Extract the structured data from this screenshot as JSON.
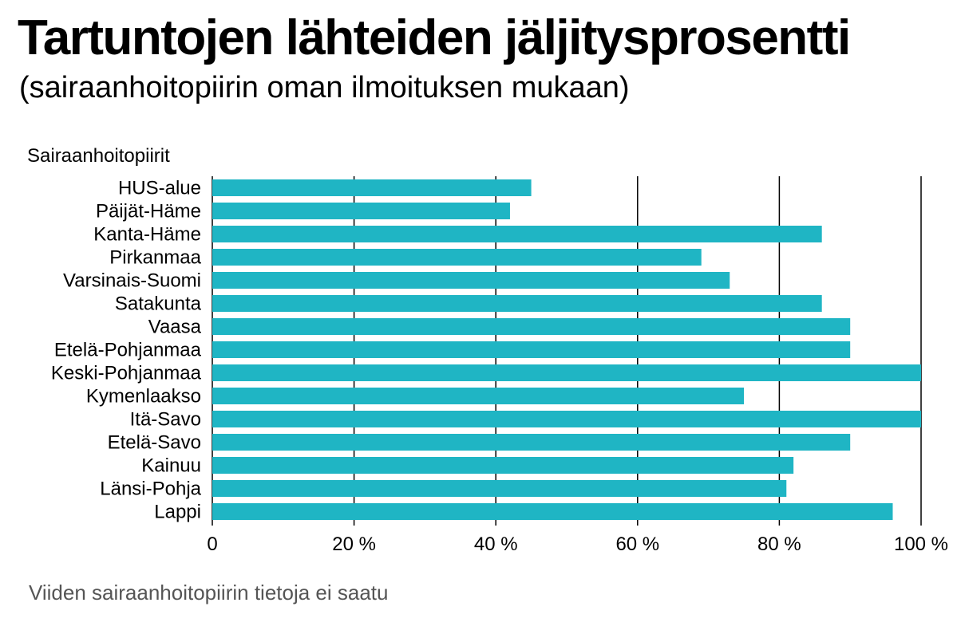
{
  "title": "Tartuntojen lähteiden jäljitysprosentti",
  "subtitle": "(sairaanhoitopiirin oman ilmoituksen mukaan)",
  "footnote": "Viiden sairaanhoitopiirin tietoja ei saatu",
  "chart_data": {
    "type": "bar",
    "orientation": "horizontal",
    "ylabel": "Sairaanhoitopiirit",
    "categories": [
      "HUS-alue",
      "Päijät-Häme",
      "Kanta-Häme",
      "Pirkanmaa",
      "Varsinais-Suomi",
      "Satakunta",
      "Vaasa",
      "Etelä-Pohjanmaa",
      "Keski-Pohjanmaa",
      "Kymenlaakso",
      "Itä-Savo",
      "Etelä-Savo",
      "Kainuu",
      "Länsi-Pohja",
      "Lappi"
    ],
    "values": [
      45,
      42,
      86,
      69,
      73,
      86,
      90,
      90,
      100,
      75,
      100,
      90,
      82,
      81,
      96
    ],
    "xlim": [
      0,
      100
    ],
    "xticks": [
      0,
      20,
      40,
      60,
      80,
      100
    ],
    "xtick_labels": [
      "0",
      "20 %",
      "40 %",
      "60 %",
      "80 %",
      "100 %"
    ],
    "grid": true,
    "bar_color": "#1fb5c4",
    "grid_color": "#000000"
  }
}
